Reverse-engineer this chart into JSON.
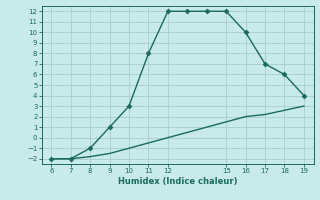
{
  "xlabel": "Humidex (Indice chaleur)",
  "background_color": "#c8eaea",
  "grid_color": "#a8cccc",
  "line_color": "#1a6b5a",
  "xlim": [
    5.5,
    19.5
  ],
  "ylim": [
    -2.5,
    12.5
  ],
  "xticks": [
    6,
    7,
    8,
    9,
    10,
    11,
    12,
    15,
    16,
    17,
    18,
    19
  ],
  "yticks": [
    -2,
    -1,
    0,
    1,
    2,
    3,
    4,
    5,
    6,
    7,
    8,
    9,
    10,
    11,
    12
  ],
  "curve1_x": [
    6,
    7,
    8,
    9,
    10,
    11,
    12,
    13,
    14,
    15,
    16,
    17,
    18,
    19
  ],
  "curve1_y": [
    -2,
    -2,
    -1,
    1,
    3,
    8,
    12,
    12,
    12,
    12,
    10,
    7,
    6,
    4
  ],
  "curve2_x": [
    6,
    7,
    8,
    9,
    10,
    11,
    12,
    13,
    14,
    15,
    16,
    17,
    18,
    19
  ],
  "curve2_y": [
    -2,
    -2,
    -1.8,
    -1.5,
    -1.0,
    -0.5,
    0,
    0.5,
    1.0,
    1.5,
    2.0,
    2.2,
    2.6,
    3.0
  ],
  "marker": "D",
  "marker_size": 2.5,
  "line_width": 1.0,
  "tick_fontsize": 5.0,
  "xlabel_fontsize": 6.0
}
